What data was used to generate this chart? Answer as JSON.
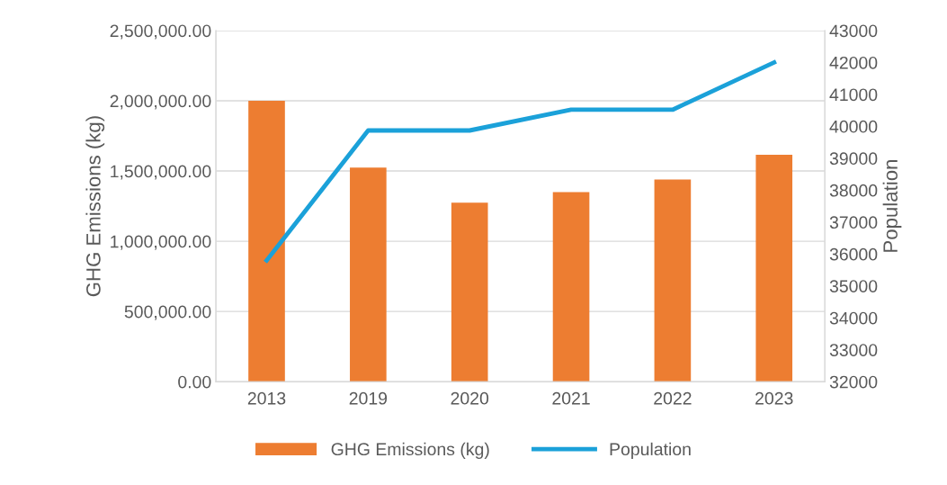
{
  "chart_data": {
    "type": "bar",
    "categories": [
      "2013",
      "2019",
      "2020",
      "2021",
      "2022",
      "2023"
    ],
    "ylabel": "GHG Emissions (kg)",
    "y2label": "Population",
    "series": [
      {
        "name": "GHG Emissions (kg)",
        "color": "#ed7d31",
        "values": [
          2000000,
          1525000,
          1275000,
          1350000,
          1440000,
          1615000
        ]
      },
      {
        "name": "Population",
        "type": "line",
        "axis": "y2",
        "color": "#1ba1d9",
        "values": [
          35800,
          39870,
          39870,
          40520,
          40520,
          42000
        ]
      }
    ],
    "ylim": [
      0,
      2500000
    ],
    "yticks": [
      {
        "value": 0,
        "label": "0.00"
      },
      {
        "value": 500000,
        "label": "500,000.00"
      },
      {
        "value": 1000000,
        "label": "1,000,000.00"
      },
      {
        "value": 1500000,
        "label": "1,500,000.00"
      },
      {
        "value": 2000000,
        "label": "2,000,000.00"
      },
      {
        "value": 2500000,
        "label": "2,500,000.00"
      }
    ],
    "y2lim": [
      32000,
      43000
    ],
    "y2ticks": [
      32000,
      33000,
      34000,
      35000,
      36000,
      37000,
      38000,
      39000,
      40000,
      41000,
      42000,
      43000
    ],
    "grid": "y",
    "legend": "bottom",
    "marker": "none",
    "line_style": "solid"
  }
}
